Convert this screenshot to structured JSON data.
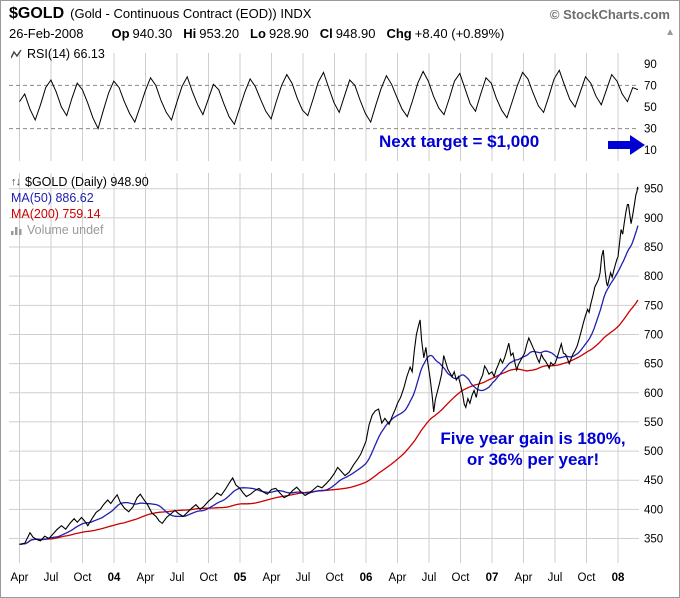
{
  "header": {
    "symbol": "$GOLD",
    "description": "(Gold - Continuous Contract (EOD)) INDX",
    "source": "© StockCharts.com",
    "date": "26-Feb-2008",
    "quote": [
      {
        "label": "Op",
        "value": "940.30"
      },
      {
        "label": "Hi",
        "value": "953.20"
      },
      {
        "label": "Lo",
        "value": "928.90"
      },
      {
        "label": "Cl",
        "value": "948.90"
      },
      {
        "label": "Chg",
        "value": "+8.40 (+0.89%)"
      }
    ]
  },
  "rsi_panel": {
    "label": "RSI(14) 66.13",
    "annotation": "Next target = $1,000"
  },
  "main_panel": {
    "legend_price": "$GOLD (Daily) 948.90",
    "legend_ma50": "MA(50) 886.62",
    "legend_ma200": "MA(200) 759.14",
    "legend_volume": "Volume undef",
    "annotation_line1": "Five year gain is 180%,",
    "annotation_line2": "or 36% per year!"
  },
  "colors": {
    "price_line": "#000000",
    "ma50": "#2020b0",
    "ma200": "#cc0000",
    "annotation_blue": "#0000d4",
    "grid": "#cfcfcf",
    "credit_gray": "#6e6e6e"
  },
  "chart_data": {
    "type": "line",
    "title": "$GOLD (Gold - Continuous Contract (EOD)) INDX",
    "subtitle": "26-Feb-2008  Op 940.30 Hi 953.20 Lo 928.90 Cl 948.90 Chg +8.40 (+0.89%)",
    "price_axis_range": [
      350,
      950
    ],
    "price_axis_ticks": [
      950,
      900,
      850,
      800,
      750,
      700,
      650,
      600,
      550,
      500,
      450,
      400,
      350
    ],
    "rsi_axis_range": [
      0,
      100
    ],
    "rsi_axis_ticks": [
      90,
      70,
      50,
      30,
      10
    ],
    "rsi_reference_lines": [
      70,
      30
    ],
    "grid": true,
    "legend_position": "top-left",
    "x_ticks": [
      {
        "t": 1,
        "label": "Apr",
        "bold": false
      },
      {
        "t": 4,
        "label": "Jul",
        "bold": false
      },
      {
        "t": 7,
        "label": "Oct",
        "bold": false
      },
      {
        "t": 10,
        "label": "04",
        "bold": true
      },
      {
        "t": 13,
        "label": "Apr",
        "bold": false
      },
      {
        "t": 16,
        "label": "Jul",
        "bold": false
      },
      {
        "t": 19,
        "label": "Oct",
        "bold": false
      },
      {
        "t": 22,
        "label": "05",
        "bold": true
      },
      {
        "t": 25,
        "label": "Apr",
        "bold": false
      },
      {
        "t": 28,
        "label": "Jul",
        "bold": false
      },
      {
        "t": 31,
        "label": "Oct",
        "bold": false
      },
      {
        "t": 34,
        "label": "06",
        "bold": true
      },
      {
        "t": 37,
        "label": "Apr",
        "bold": false
      },
      {
        "t": 40,
        "label": "Jul",
        "bold": false
      },
      {
        "t": 43,
        "label": "Oct",
        "bold": false
      },
      {
        "t": 46,
        "label": "07",
        "bold": true
      },
      {
        "t": 49,
        "label": "Apr",
        "bold": false
      },
      {
        "t": 52,
        "label": "Jul",
        "bold": false
      },
      {
        "t": 55,
        "label": "Oct",
        "bold": false
      },
      {
        "t": 58,
        "label": "08",
        "bold": true
      }
    ],
    "x_unit": "months since Mar-2003",
    "series": [
      {
        "name": "$GOLD daily close",
        "panel": "price",
        "color": "#000000",
        "last_value": 948.9,
        "points": [
          [
            1,
            340
          ],
          [
            1.5,
            342
          ],
          [
            2,
            360
          ],
          [
            2.3,
            352
          ],
          [
            2.7,
            348
          ],
          [
            3,
            346
          ],
          [
            3.4,
            354
          ],
          [
            3.8,
            350
          ],
          [
            4.2,
            358
          ],
          [
            4.6,
            366
          ],
          [
            5,
            372
          ],
          [
            5.4,
            366
          ],
          [
            5.8,
            376
          ],
          [
            6.2,
            384
          ],
          [
            6.5,
            378
          ],
          [
            6.9,
            386
          ],
          [
            7.2,
            380
          ],
          [
            7.5,
            372
          ],
          [
            7.9,
            384
          ],
          [
            8.3,
            395
          ],
          [
            8.7,
            400
          ],
          [
            9,
            408
          ],
          [
            9.4,
            416
          ],
          [
            9.7,
            410
          ],
          [
            10,
            418
          ],
          [
            10.3,
            425
          ],
          [
            10.6,
            412
          ],
          [
            11,
            402
          ],
          [
            11.4,
            396
          ],
          [
            11.8,
            404
          ],
          [
            12.2,
            420
          ],
          [
            12.5,
            426
          ],
          [
            12.8,
            418
          ],
          [
            13.2,
            408
          ],
          [
            13.6,
            394
          ],
          [
            14,
            388
          ],
          [
            14.3,
            380
          ],
          [
            14.6,
            376
          ],
          [
            15,
            386
          ],
          [
            15.4,
            392
          ],
          [
            15.8,
            398
          ],
          [
            16.2,
            392
          ],
          [
            16.6,
            388
          ],
          [
            17,
            395
          ],
          [
            17.4,
            402
          ],
          [
            17.8,
            408
          ],
          [
            18.2,
            400
          ],
          [
            18.6,
            406
          ],
          [
            19,
            414
          ],
          [
            19.4,
            420
          ],
          [
            19.8,
            428
          ],
          [
            20.2,
            424
          ],
          [
            20.6,
            434
          ],
          [
            21,
            446
          ],
          [
            21.3,
            454
          ],
          [
            21.6,
            442
          ],
          [
            22,
            436
          ],
          [
            22.3,
            428
          ],
          [
            22.6,
            422
          ],
          [
            23,
            426
          ],
          [
            23.4,
            432
          ],
          [
            23.8,
            436
          ],
          [
            24.2,
            430
          ],
          [
            24.6,
            426
          ],
          [
            25,
            434
          ],
          [
            25.4,
            436
          ],
          [
            25.8,
            428
          ],
          [
            26.2,
            420
          ],
          [
            26.6,
            424
          ],
          [
            27,
            432
          ],
          [
            27.4,
            438
          ],
          [
            27.8,
            430
          ],
          [
            28.2,
            424
          ],
          [
            28.6,
            428
          ],
          [
            29,
            434
          ],
          [
            29.4,
            440
          ],
          [
            29.8,
            437
          ],
          [
            30.2,
            444
          ],
          [
            30.6,
            452
          ],
          [
            31,
            462
          ],
          [
            31.3,
            472
          ],
          [
            31.6,
            466
          ],
          [
            32,
            458
          ],
          [
            32.4,
            464
          ],
          [
            32.8,
            476
          ],
          [
            33.2,
            486
          ],
          [
            33.5,
            495
          ],
          [
            33.8,
            508
          ],
          [
            34,
            517
          ],
          [
            34.3,
            545
          ],
          [
            34.6,
            562
          ],
          [
            34.9,
            569
          ],
          [
            35.2,
            572
          ],
          [
            35.5,
            548
          ],
          [
            35.8,
            556
          ],
          [
            36.2,
            546
          ],
          [
            36.5,
            560
          ],
          [
            36.8,
            572
          ],
          [
            37,
            582
          ],
          [
            37.3,
            592
          ],
          [
            37.6,
            608
          ],
          [
            37.9,
            628
          ],
          [
            38.2,
            644
          ],
          [
            38.4,
            636
          ],
          [
            38.6,
            672
          ],
          [
            38.8,
            700
          ],
          [
            39,
            715
          ],
          [
            39.15,
            725
          ],
          [
            39.3,
            690
          ],
          [
            39.5,
            660
          ],
          [
            39.7,
            678
          ],
          [
            39.9,
            650
          ],
          [
            40.1,
            625
          ],
          [
            40.3,
            596
          ],
          [
            40.45,
            567
          ],
          [
            40.6,
            588
          ],
          [
            40.8,
            602
          ],
          [
            41,
            616
          ],
          [
            41.2,
            632
          ],
          [
            41.4,
            664
          ],
          [
            41.6,
            652
          ],
          [
            41.8,
            640
          ],
          [
            42,
            634
          ],
          [
            42.2,
            628
          ],
          [
            42.4,
            636
          ],
          [
            42.6,
            622
          ],
          [
            42.8,
            628
          ],
          [
            43,
            614
          ],
          [
            43.2,
            598
          ],
          [
            43.35,
            581
          ],
          [
            43.5,
            575
          ],
          [
            43.7,
            590
          ],
          [
            43.9,
            582
          ],
          [
            44.1,
            596
          ],
          [
            44.3,
            604
          ],
          [
            44.5,
            592
          ],
          [
            44.7,
            612
          ],
          [
            44.9,
            622
          ],
          [
            45.1,
            630
          ],
          [
            45.3,
            646
          ],
          [
            45.5,
            640
          ],
          [
            45.7,
            632
          ],
          [
            46,
            636
          ],
          [
            46.2,
            628
          ],
          [
            46.4,
            640
          ],
          [
            46.6,
            648
          ],
          [
            46.8,
            658
          ],
          [
            47,
            651
          ],
          [
            47.2,
            660
          ],
          [
            47.4,
            672
          ],
          [
            47.6,
            685
          ],
          [
            47.8,
            664
          ],
          [
            48,
            668
          ],
          [
            48.2,
            650
          ],
          [
            48.35,
            639
          ],
          [
            48.5,
            648
          ],
          [
            48.7,
            655
          ],
          [
            48.9,
            661
          ],
          [
            49.1,
            668
          ],
          [
            49.3,
            682
          ],
          [
            49.5,
            694
          ],
          [
            49.7,
            686
          ],
          [
            49.9,
            678
          ],
          [
            50.1,
            670
          ],
          [
            50.3,
            660
          ],
          [
            50.5,
            652
          ],
          [
            50.7,
            666
          ],
          [
            50.9,
            659
          ],
          [
            51.1,
            654
          ],
          [
            51.3,
            648
          ],
          [
            51.45,
            642
          ],
          [
            51.6,
            652
          ],
          [
            51.8,
            648
          ],
          [
            52,
            650
          ],
          [
            52.2,
            660
          ],
          [
            52.4,
            672
          ],
          [
            52.6,
            684
          ],
          [
            52.8,
            668
          ],
          [
            53,
            666
          ],
          [
            53.2,
            658
          ],
          [
            53.35,
            650
          ],
          [
            53.5,
            657
          ],
          [
            53.7,
            666
          ],
          [
            53.9,
            672
          ],
          [
            54.1,
            680
          ],
          [
            54.3,
            692
          ],
          [
            54.5,
            706
          ],
          [
            54.7,
            720
          ],
          [
            54.9,
            732
          ],
          [
            55.1,
            743
          ],
          [
            55.25,
            738
          ],
          [
            55.4,
            752
          ],
          [
            55.6,
            766
          ],
          [
            55.8,
            782
          ],
          [
            56,
            789
          ],
          [
            56.15,
            795
          ],
          [
            56.3,
            806
          ],
          [
            56.45,
            834
          ],
          [
            56.6,
            845
          ],
          [
            56.75,
            812
          ],
          [
            56.9,
            790
          ],
          [
            57,
            783
          ],
          [
            57.15,
            795
          ],
          [
            57.3,
            806
          ],
          [
            57.45,
            798
          ],
          [
            57.6,
            810
          ],
          [
            57.75,
            820
          ],
          [
            57.9,
            829
          ],
          [
            58,
            833
          ],
          [
            58.15,
            858
          ],
          [
            58.3,
            880
          ],
          [
            58.45,
            872
          ],
          [
            58.6,
            892
          ],
          [
            58.75,
            910
          ],
          [
            58.9,
            923
          ],
          [
            59,
            923
          ],
          [
            59.1,
            908
          ],
          [
            59.25,
            890
          ],
          [
            59.4,
            905
          ],
          [
            59.55,
            922
          ],
          [
            59.7,
            940
          ],
          [
            59.8,
            945
          ],
          [
            59.87,
            953
          ],
          [
            59.9,
            948.9
          ]
        ]
      },
      {
        "name": "MA(50)",
        "panel": "price",
        "type": "moving_average",
        "color": "#2020b0",
        "window_months": 2.5,
        "last_value": 886.62
      },
      {
        "name": "MA(200)",
        "panel": "price",
        "type": "moving_average",
        "color": "#cc0000",
        "window_months": 10,
        "last_value": 759.14
      },
      {
        "name": "RSI(14)",
        "panel": "rsi",
        "color": "#000000",
        "last_value": 66.13,
        "values": [
          55,
          62,
          48,
          38,
          52,
          68,
          75,
          64,
          50,
          42,
          58,
          72,
          66,
          54,
          40,
          30,
          47,
          63,
          74,
          68,
          55,
          44,
          36,
          50,
          65,
          77,
          70,
          56,
          45,
          38,
          54,
          69,
          78,
          64,
          52,
          43,
          57,
          71,
          66,
          53,
          41,
          34,
          49,
          64,
          76,
          69,
          57,
          46,
          39,
          55,
          70,
          80,
          72,
          58,
          47,
          42,
          57,
          73,
          82,
          68,
          54,
          45,
          60,
          75,
          70,
          56,
          44,
          36,
          52,
          67,
          79,
          71,
          59,
          48,
          41,
          56,
          72,
          83,
          74,
          60,
          49,
          43,
          58,
          74,
          81,
          67,
          53,
          46,
          62,
          77,
          72,
          58,
          47,
          40,
          55,
          70,
          82,
          76,
          63,
          51,
          45,
          60,
          76,
          84,
          70,
          57,
          50,
          64,
          78,
          72,
          60,
          52,
          66,
          80,
          74,
          62,
          55,
          68,
          66.13
        ]
      }
    ]
  }
}
